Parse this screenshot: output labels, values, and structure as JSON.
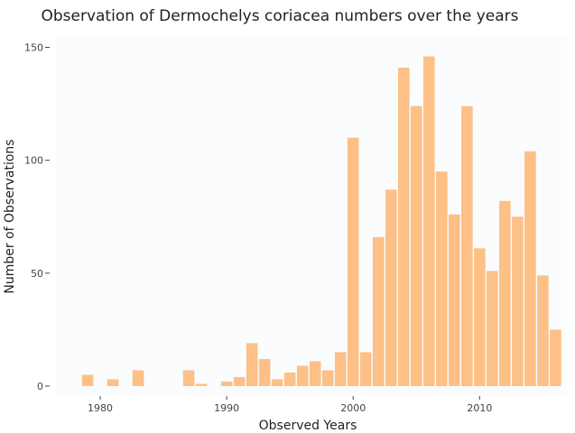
{
  "chart_data": {
    "type": "bar",
    "title": "Observation of Dermochelys coriacea numbers over the years",
    "xlabel": "Observed Years",
    "ylabel": "Number of Observations",
    "xlim": [
      1976.5,
      2016.9
    ],
    "ylim": [
      -4,
      155
    ],
    "x_ticks": [
      1980,
      1990,
      2000,
      2010
    ],
    "y_ticks": [
      0,
      50,
      100,
      150
    ],
    "grid": false,
    "bar_color": "#fdc086",
    "plot_background": "#fbfcfe",
    "x": [
      1979,
      1981,
      1983,
      1987,
      1988,
      1990,
      1991,
      1992,
      1993,
      1994,
      1995,
      1996,
      1997,
      1998,
      1999,
      2000,
      2001,
      2002,
      2003,
      2004,
      2005,
      2006,
      2007,
      2008,
      2009,
      2010,
      2011,
      2012,
      2013,
      2014,
      2015,
      2016
    ],
    "values": [
      5,
      3,
      7,
      7,
      1,
      2,
      4,
      19,
      12,
      3,
      6,
      9,
      11,
      7,
      15,
      110,
      15,
      66,
      87,
      141,
      124,
      146,
      95,
      76,
      124,
      61,
      51,
      82,
      75,
      104,
      49,
      25
    ]
  }
}
